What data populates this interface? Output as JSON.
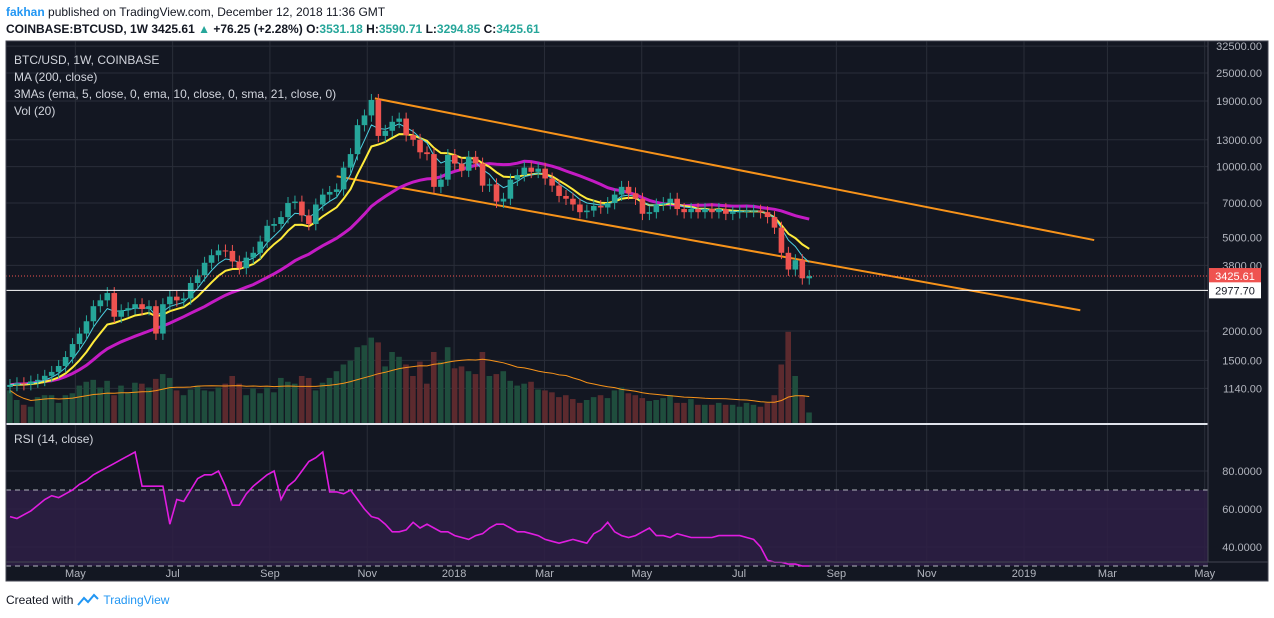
{
  "header": {
    "user": "fakhan",
    "published": "published on TradingView.com, December 12, 2018 11:36 GMT",
    "symbol": "COINBASE:BTCUSD, 1W",
    "last": "3425.61",
    "change": "+76.25 (+2.28%)",
    "o_label": "O:",
    "o_val": "3531.18",
    "h_label": "H:",
    "h_val": "3590.71",
    "l_label": "L:",
    "l_val": "3294.85",
    "c_label": "C:",
    "c_val": "3425.61"
  },
  "legend": {
    "title": "BTC/USD, 1W, COINBASE",
    "ma": "MA (200, close)",
    "mas3": "3MAs (ema, 5, close, 0, ema, 10, close, 0, sma, 21, close, 0)",
    "vol": "Vol (20)",
    "rsi": "RSI (14, close)"
  },
  "footer": {
    "created": "Created with",
    "brand": "TradingView"
  },
  "colors": {
    "background": "#131722",
    "up": "#26a69a",
    "down": "#ef5350",
    "ema5": "#4dd0e1",
    "ema10": "#ffeb3b",
    "sma21": "#c41bc4",
    "trendline": "#f7931a",
    "rsi": "#e01de0",
    "grid": "#2a2e39"
  },
  "chart_data": {
    "type": "candlestick",
    "price_axis_labels": [
      "32500.00",
      "25000.00",
      "19000.00",
      "13000.00",
      "10000.00",
      "7000.00",
      "5000.00",
      "3800.00",
      "2000.00",
      "1500.00",
      "1140.00"
    ],
    "price_axis_values": [
      32500,
      25000,
      19000,
      13000,
      10000,
      7000,
      5000,
      3800,
      2000,
      1500,
      1140
    ],
    "price_tags": [
      {
        "label": "3425.61",
        "value": 3425.61,
        "color": "#ef5350"
      },
      {
        "label": "2977.70",
        "value": 2977.7,
        "color": "#ffffff"
      }
    ],
    "rsi_axis_labels": [
      "80.0000",
      "60.0000",
      "40.0000"
    ],
    "rsi_axis_values": [
      80,
      60,
      40
    ],
    "rsi_levels": [
      70,
      30
    ],
    "time_labels": [
      "May",
      "Jul",
      "Sep",
      "Nov",
      "2018",
      "Mar",
      "May",
      "Jul",
      "Sep",
      "Nov",
      "2019",
      "Mar",
      "May"
    ],
    "time_index": [
      9.4,
      23.4,
      37.4,
      51.4,
      63.9,
      76.9,
      90.9,
      104.9,
      118.9,
      131.9,
      145.9,
      157.9,
      171.9
    ],
    "close": [
      1180,
      1200,
      1190,
      1220,
      1240,
      1290,
      1340,
      1420,
      1550,
      1760,
      1950,
      2200,
      2550,
      2700,
      2900,
      2300,
      2450,
      2500,
      2600,
      2480,
      2550,
      1950,
      2600,
      2800,
      2700,
      2750,
      3200,
      3450,
      3900,
      4200,
      4400,
      4380,
      3950,
      3700,
      4100,
      4300,
      4800,
      5600,
      5700,
      6100,
      7000,
      7100,
      6200,
      5700,
      6900,
      7600,
      7800,
      8000,
      9900,
      11300,
      15000,
      16500,
      19200,
      13500,
      14200,
      15500,
      16000,
      13600,
      13000,
      11500,
      11300,
      8200,
      8800,
      11200,
      10300,
      9600,
      11000,
      10300,
      8300,
      8400,
      7100,
      7300,
      8800,
      9200,
      9900,
      9500,
      9800,
      8900,
      8300,
      7500,
      7300,
      6900,
      6400,
      6500,
      6800,
      6700,
      7000,
      7600,
      8200,
      7700,
      7300,
      6300,
      6400,
      6900,
      7000,
      7300,
      6600,
      6400,
      6600,
      6400,
      6600,
      6400,
      6600,
      6300,
      6400,
      6450,
      6480,
      6500,
      6400,
      6100,
      5500,
      4300,
      3650,
      4000,
      3350,
      3425.61
    ],
    "ema5": [
      1180,
      1190,
      1190,
      1200,
      1210,
      1237,
      1271,
      1321,
      1397,
      1518,
      1662,
      1841,
      2077,
      2285,
      2490,
      2427,
      2435,
      2456,
      2504,
      2496,
      2514,
      2326,
      2417,
      2545,
      2597,
      2648,
      2832,
      3038,
      3325,
      3617,
      3878,
      4045,
      4013,
      3909,
      3973,
      4082,
      4321,
      4747,
      5065,
      5410,
      5940,
      6327,
      6285,
      6090,
      6360,
      6773,
      7115,
      7410,
      8240,
      9260,
      11173,
      12949,
      15033,
      14522,
      14415,
      14777,
      15185,
      14657,
      14105,
      13237,
      12591,
      11127,
      10351,
      10634,
      10523,
      10215,
      10477,
      10418,
      9712,
      9275,
      8550,
      8133,
      8355,
      8637,
      9058,
      9205,
      9403,
      9235,
      8923,
      8449,
      8066,
      7677,
      7251,
      7001,
      6934,
      6856,
      6904,
      7136,
      7491,
      7561,
      7474,
      7083,
      6855,
      6870,
      6913,
      7042,
      6895,
      6730,
      6687,
      6591,
      6594,
      6529,
      6553,
      6469,
      6446,
      6447,
      6458,
      6472,
      6448,
      6332,
      6055,
      5470,
      4863,
      4575,
      4167,
      3920
    ],
    "ema10": [
      1180,
      1184,
      1184,
      1191,
      1200,
      1215,
      1237,
      1270,
      1321,
      1401,
      1501,
      1628,
      1795,
      1960,
      2131,
      2162,
      2214,
      2266,
      2327,
      2354,
      2390,
      2310,
      2345,
      2428,
      2477,
      2527,
      2649,
      2800,
      3000,
      3218,
      3433,
      3605,
      3668,
      3674,
      3752,
      3852,
      4050,
      4386,
      4679,
      4938,
      5331,
      5652,
      5658,
      5572,
      5816,
      6141,
      6425,
      6712,
      7292,
      8021,
      9290,
      10605,
      12168,
      12410,
      12736,
      13239,
      13741,
      13717,
      13587,
      13208,
      12863,
      12010,
      11426,
      11386,
      11188,
      10881,
      10903,
      10793,
      10334,
      9982,
      9458,
      9066,
      9018,
      9051,
      9204,
      9258,
      9356,
      9272,
      9095,
      8714,
      8366,
      8000,
      7600,
      7309,
      7162,
      7023,
      6991,
      7104,
      7299,
      7377,
      7362,
      7045,
      6855,
      6845,
      6877,
      6968,
      6883,
      6796,
      6751,
      6620,
      6615,
      6539,
      6597,
      6541,
      6497,
      6468,
      6451,
      6458,
      6444,
      6311,
      6086,
      5633,
      5179,
      4964,
      4669,
      4472
    ],
    "sma21": [
      1180,
      1190,
      1190,
      1200,
      1210,
      1220,
      1230,
      1250,
      1280,
      1320,
      1370,
      1430,
      1510,
      1600,
      1680,
      1740,
      1800,
      1850,
      1900,
      1950,
      2000,
      2050,
      2100,
      2160,
      2230,
      2300,
      2380,
      2460,
      2540,
      2640,
      2740,
      2840,
      2920,
      2990,
      3070,
      3150,
      3260,
      3380,
      3500,
      3640,
      3800,
      3980,
      4120,
      4240,
      4430,
      4610,
      4780,
      4960,
      5200,
      5470,
      5850,
      6280,
      6780,
      7130,
      7470,
      7800,
      8130,
      8380,
      8600,
      8750,
      8860,
      8900,
      9050,
      9330,
      9550,
      9720,
      9960,
      10120,
      10220,
      10300,
      10240,
      10200,
      10220,
      10340,
      10530,
      10500,
      10360,
      10220,
      10040,
      9830,
      9580,
      9350,
      9130,
      8890,
      8650,
      8400,
      8130,
      7980,
      7900,
      7750,
      7610,
      7380,
      7180,
      7050,
      6950,
      6900,
      6850,
      6820,
      6830,
      6850,
      6860,
      6880,
      6850,
      6820,
      6790,
      6790,
      6800,
      6770,
      6700,
      6640,
      6580,
      6480,
      6330,
      6180,
      6080,
      5980
    ],
    "volume": [
      0.35,
      0.25,
      0.2,
      0.18,
      0.28,
      0.3,
      0.3,
      0.22,
      0.3,
      0.32,
      0.4,
      0.44,
      0.46,
      0.38,
      0.45,
      0.3,
      0.4,
      0.33,
      0.43,
      0.42,
      0.38,
      0.47,
      0.52,
      0.48,
      0.35,
      0.3,
      0.36,
      0.4,
      0.35,
      0.34,
      0.38,
      0.42,
      0.5,
      0.42,
      0.3,
      0.37,
      0.32,
      0.38,
      0.33,
      0.48,
      0.44,
      0.42,
      0.5,
      0.48,
      0.35,
      0.43,
      0.48,
      0.55,
      0.62,
      0.66,
      0.8,
      0.82,
      0.9,
      0.85,
      0.6,
      0.75,
      0.7,
      0.62,
      0.5,
      0.65,
      0.42,
      0.75,
      0.65,
      0.8,
      0.58,
      0.6,
      0.55,
      0.52,
      0.75,
      0.5,
      0.52,
      0.55,
      0.45,
      0.4,
      0.42,
      0.44,
      0.36,
      0.35,
      0.33,
      0.28,
      0.3,
      0.26,
      0.22,
      0.25,
      0.28,
      0.3,
      0.27,
      0.35,
      0.38,
      0.32,
      0.3,
      0.27,
      0.24,
      0.25,
      0.27,
      0.3,
      0.22,
      0.22,
      0.26,
      0.2,
      0.2,
      0.2,
      0.22,
      0.2,
      0.2,
      0.18,
      0.22,
      0.2,
      0.18,
      0.22,
      0.3,
      0.62,
      0.96,
      0.5,
      0.3,
      0.12
    ],
    "rsi": [
      56,
      55,
      57,
      59,
      62,
      65,
      67,
      66,
      68,
      70,
      73,
      75,
      78,
      80,
      82,
      84,
      86,
      88,
      90,
      72,
      72,
      72,
      72,
      52,
      65,
      64,
      70,
      76,
      78,
      78,
      80,
      72,
      62,
      62,
      68,
      72,
      75,
      78,
      80,
      65,
      72,
      75,
      80,
      85,
      87,
      90,
      69,
      69,
      68,
      70,
      65,
      60,
      56,
      55,
      52,
      48,
      48,
      49,
      53,
      50,
      52,
      50,
      48,
      48,
      46,
      45,
      44,
      46,
      47,
      50,
      52,
      52,
      50,
      48,
      48,
      47,
      46,
      44,
      43,
      42,
      43,
      44,
      43,
      42,
      47,
      49,
      53,
      48,
      46,
      45,
      46,
      48,
      50,
      46,
      46,
      45,
      47,
      46,
      45,
      45,
      45,
      45,
      46,
      46,
      46,
      46,
      45,
      44,
      40,
      33,
      32,
      32,
      31,
      31,
      30,
      30
    ],
    "trendline_upper": {
      "from_index": 52.5,
      "from_value": 19500,
      "to_index": 156,
      "to_value": 4870
    },
    "trendline_lower": {
      "from_index": 47,
      "from_value": 9100,
      "to_index": 154,
      "to_value": 2450
    }
  }
}
